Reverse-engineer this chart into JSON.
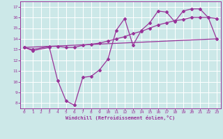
{
  "line1_x": [
    0,
    1,
    3,
    4,
    5,
    6,
    7,
    8,
    9,
    10,
    11,
    12,
    13,
    14,
    15,
    16,
    17,
    18,
    19,
    20,
    21,
    22,
    23
  ],
  "line1_y": [
    13.2,
    12.9,
    13.2,
    10.1,
    8.2,
    7.8,
    10.4,
    10.5,
    11.1,
    12.1,
    14.8,
    15.9,
    13.4,
    14.8,
    15.5,
    16.6,
    16.5,
    15.6,
    16.6,
    16.8,
    16.8,
    16.0,
    15.9
  ],
  "line2_x": [
    0,
    1,
    3,
    4,
    5,
    6,
    7,
    8,
    9,
    10,
    11,
    12,
    13,
    14,
    15,
    16,
    17,
    18,
    19,
    20,
    21,
    22,
    23
  ],
  "line2_y": [
    13.2,
    13.0,
    13.3,
    13.3,
    13.2,
    13.2,
    13.4,
    13.5,
    13.6,
    13.8,
    14.0,
    14.2,
    14.5,
    14.7,
    15.0,
    15.3,
    15.5,
    15.7,
    15.8,
    16.0,
    16.0,
    16.0,
    14.0
  ],
  "line3_x": [
    0,
    23
  ],
  "line3_y": [
    13.2,
    14.0
  ],
  "color": "#993399",
  "bg_color": "#cce8e8",
  "xlabel": "Windchill (Refroidissement éolien,°C)",
  "ylim": [
    7.5,
    17.5
  ],
  "xlim": [
    -0.5,
    23.5
  ],
  "yticks": [
    8,
    9,
    10,
    11,
    12,
    13,
    14,
    15,
    16,
    17
  ],
  "xticks": [
    0,
    1,
    2,
    3,
    4,
    5,
    6,
    7,
    8,
    9,
    10,
    11,
    12,
    13,
    14,
    15,
    16,
    17,
    18,
    19,
    20,
    21,
    22,
    23
  ]
}
